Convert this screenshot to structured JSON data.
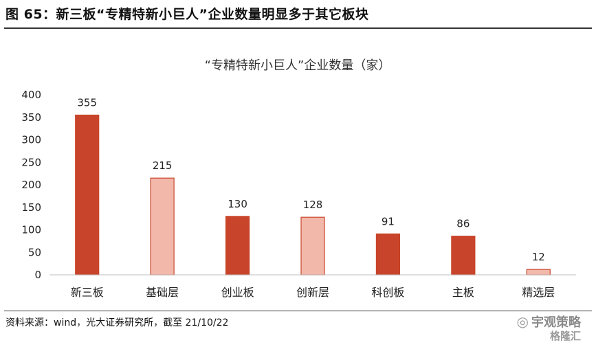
{
  "header": {
    "figure_title": "图 65：新三板“专精特新小巨人”企业数量明显多于其它板块"
  },
  "footer": {
    "source": "资料来源：wind，光大证券研究所，截至 21/10/22",
    "watermark_brand": "宇观策略",
    "watermark_site": "格隆汇",
    "watermark_icon": "wechat-icon"
  },
  "chart_data": {
    "type": "bar",
    "title": "“专精特新小巨人”企业数量（家）",
    "categories": [
      "新三板",
      "基础层",
      "创业板",
      "创新层",
      "科创板",
      "主板",
      "精选层"
    ],
    "values": [
      355,
      215,
      130,
      128,
      91,
      86,
      12
    ],
    "ylim": [
      0,
      400
    ],
    "yticks": [
      0,
      50,
      100,
      150,
      200,
      250,
      300,
      350,
      400
    ],
    "xlabel": "",
    "ylabel": "",
    "grid": false,
    "colors": {
      "dark_fill": "#C8442A",
      "light_fill": "#F2B8AA",
      "bar_edge": "#C8442A",
      "axis": "#BFBFBF"
    },
    "bar_styles": [
      "dark",
      "light",
      "dark",
      "light",
      "dark",
      "dark",
      "light"
    ]
  }
}
